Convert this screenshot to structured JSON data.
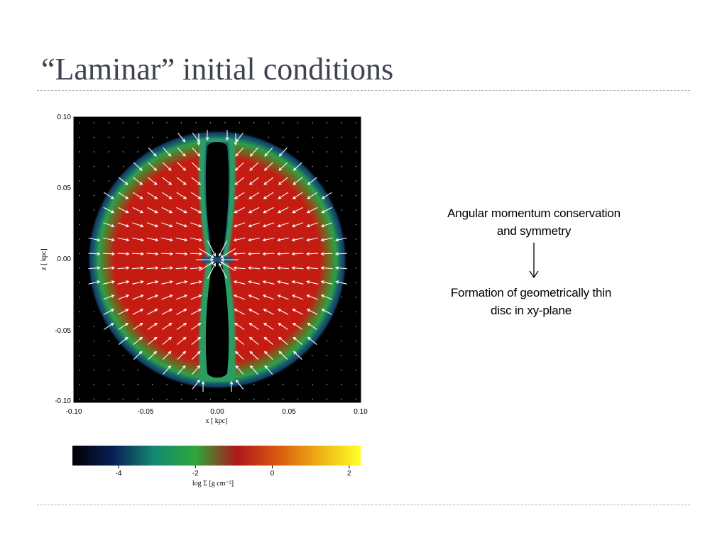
{
  "slide": {
    "title": "“Laminar” initial conditions",
    "notes": [
      "Angular momentum conservation\nand symmetry",
      "Formation of geometrically thin\ndisc in xy-plane"
    ],
    "note_lines": [
      [
        "Angular momentum conservation",
        "and symmetry"
      ],
      [
        "Formation of geometrically thin",
        "disc in xy-plane"
      ]
    ]
  },
  "chart_data": [
    {
      "type": "heatmap",
      "title": "",
      "xlabel": "x [ kpc]",
      "ylabel": "z [ kpc]",
      "xlim": [
        -0.1,
        0.1
      ],
      "ylim": [
        -0.1,
        0.1
      ],
      "x_ticks": [
        "-0.10",
        "-0.05",
        "0.00",
        "0.05",
        "0.10"
      ],
      "y_ticks": [
        "0.10",
        "0.05",
        "0.00",
        "-0.05",
        "-0.10"
      ],
      "background": "#000000",
      "overlay": "velocity-arrows",
      "arrow_color": "#ffffff"
    },
    {
      "type": "colorbar",
      "label": "log Σ [g cm⁻²]",
      "range": [
        -5.2,
        2.3
      ],
      "ticks": [
        -4,
        -2,
        0,
        2
      ],
      "tick_labels": [
        "-4",
        "-2",
        "0",
        "2"
      ],
      "colors": [
        "#000000",
        "#0a1f57",
        "#128a70",
        "#2ea63a",
        "#b0161a",
        "#d85a0f",
        "#efb014",
        "#ffff2a"
      ]
    }
  ]
}
